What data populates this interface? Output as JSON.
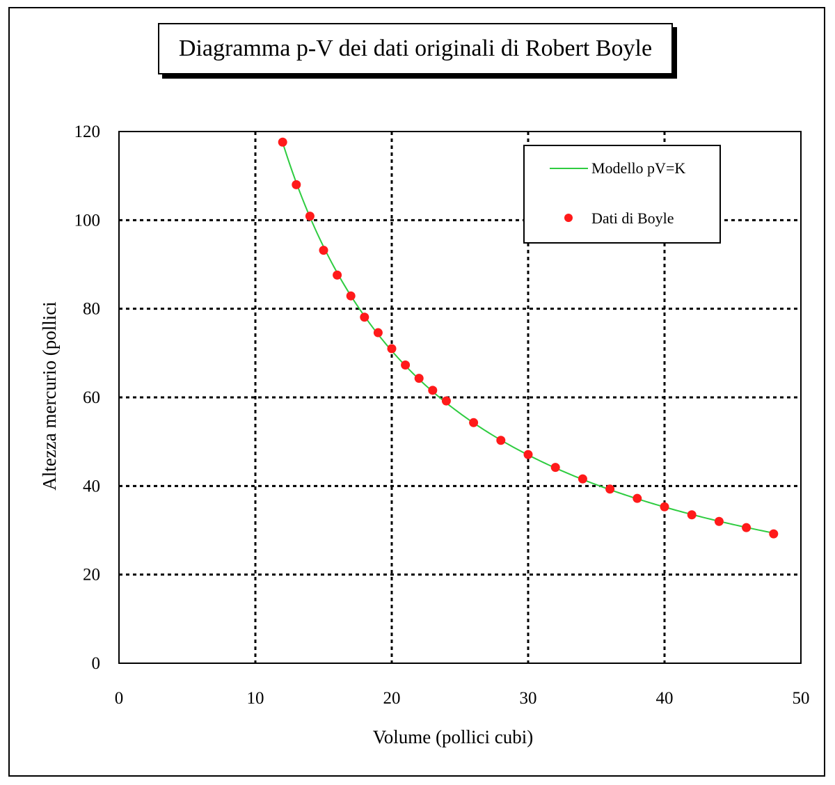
{
  "chart_data": {
    "type": "scatter",
    "title": "Diagramma p-V dei dati originali di Robert Boyle",
    "xlabel": "Volume (pollici cubi)",
    "ylabel": "Altezza mercurio (pollici",
    "xlim": [
      0,
      50
    ],
    "ylim": [
      0,
      120
    ],
    "xticks": [
      0,
      10,
      20,
      30,
      40,
      50
    ],
    "yticks": [
      0,
      20,
      40,
      60,
      80,
      100,
      120
    ],
    "grid": true,
    "legend_position": "top-right",
    "series": [
      {
        "name": "Modello pV=K",
        "kind": "line",
        "color": "#2ecc40",
        "K": 1410,
        "x_range": [
          12,
          48
        ]
      },
      {
        "name": "Dati di Boyle",
        "kind": "scatter",
        "color": "#ff1a1a",
        "x": [
          12,
          13,
          14,
          15,
          16,
          17,
          18,
          19,
          20,
          21,
          22,
          23,
          24,
          26,
          28,
          30,
          32,
          34,
          36,
          38,
          40,
          42,
          44,
          46,
          48
        ],
        "y": [
          117.6,
          108,
          100.9,
          93.2,
          87.6,
          82.9,
          78.1,
          74.6,
          71,
          67.3,
          64.3,
          61.6,
          59.2,
          54.3,
          50.3,
          47.1,
          44.2,
          41.6,
          39.3,
          37.2,
          35.3,
          33.5,
          32,
          30.6,
          29.2
        ]
      }
    ]
  }
}
